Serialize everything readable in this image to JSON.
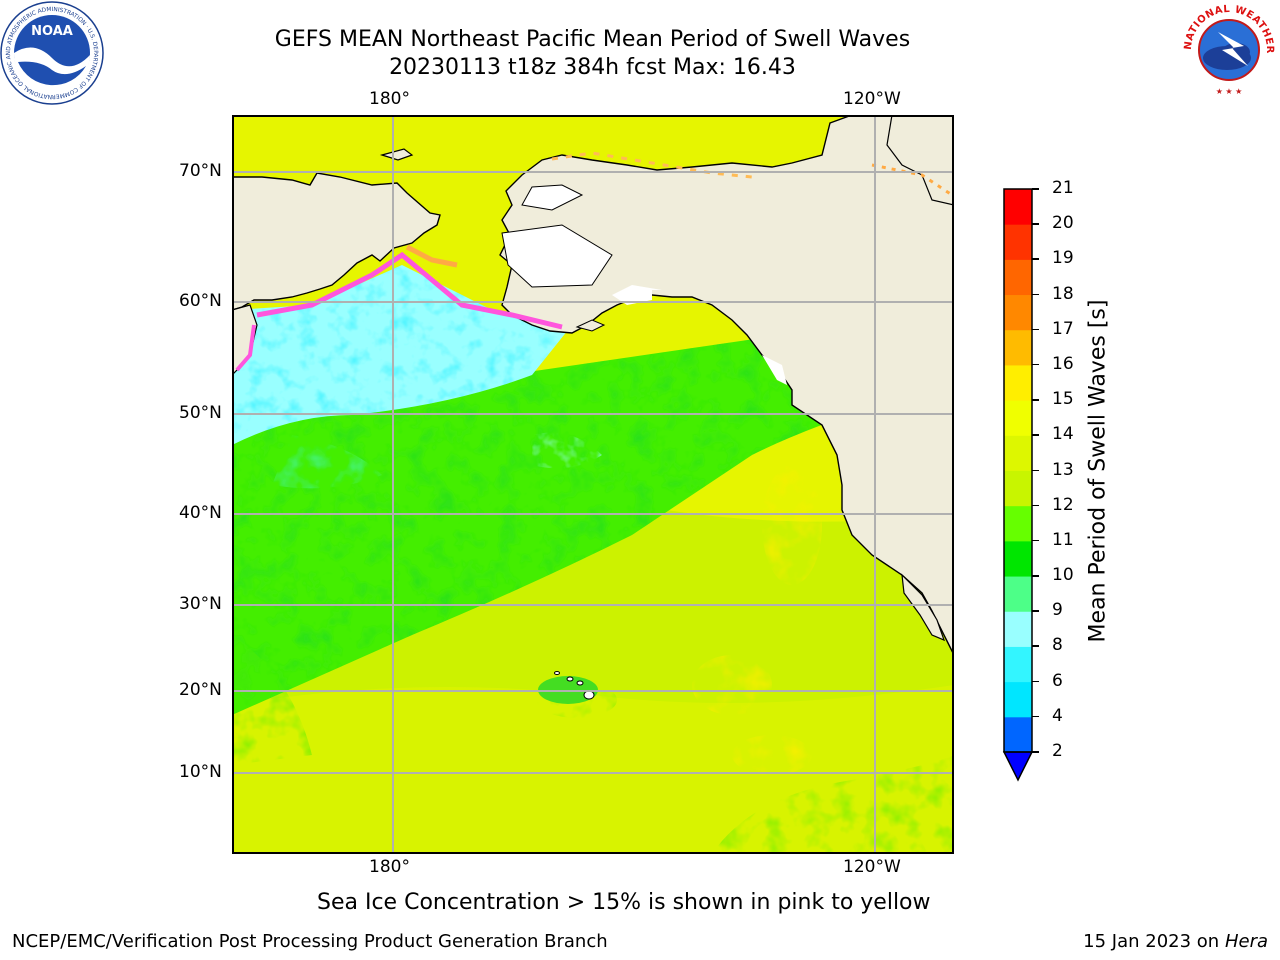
{
  "title": {
    "line1": "GEFS MEAN Northeast Pacific Mean Period of Swell Waves",
    "line2": "20230113 t18z 384h fcst   Max: 16.43"
  },
  "map": {
    "lon_labels": [
      "180°",
      "120°W"
    ],
    "lat_labels": [
      "70°N",
      "60°N",
      "50°N",
      "40°N",
      "30°N",
      "20°N",
      "10°N"
    ]
  },
  "colorbar": {
    "label": "Mean Period of Swell Waves [s]",
    "ticks": [
      "2",
      "4",
      "6",
      "8",
      "9",
      "10",
      "11",
      "12",
      "13",
      "14",
      "15",
      "16",
      "17",
      "18",
      "19",
      "20",
      "21"
    ],
    "colors": [
      "#0066ff",
      "#00e6ff",
      "#33f5ff",
      "#99ffff",
      "#4dff88",
      "#00e600",
      "#66ff00",
      "#c8f500",
      "#ddf700",
      "#f0ff00",
      "#ffee00",
      "#ffbb00",
      "#ff8800",
      "#ff6600",
      "#ff3300",
      "#ff0000"
    ],
    "extend_color": "#0000ff"
  },
  "note": "Sea Ice Concentration > 15% is shown in pink to yellow",
  "footer": {
    "left": "NCEP/EMC/Verification Post Processing Product Generation Branch",
    "right_date": "15 Jan 2023 on ",
    "right_machine": "Hera"
  },
  "logos": {
    "noaa": {
      "text": "NOAA",
      "ring": "NATIONAL OCEANIC AND ATMOSPHERIC ADMINISTRATION · U.S. DEPARTMENT OF COMMERCE"
    },
    "nws": {
      "ring": "NATIONAL WEATHER SERVICE"
    }
  }
}
